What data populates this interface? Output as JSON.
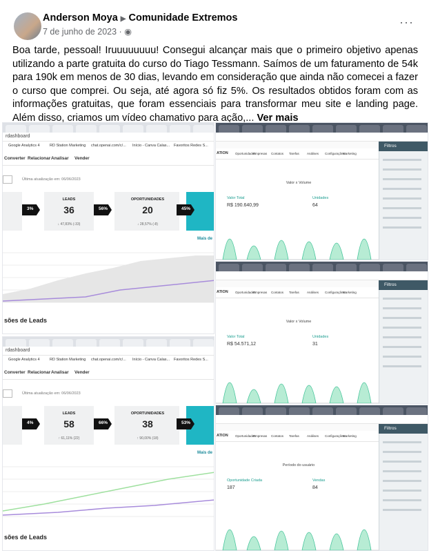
{
  "post": {
    "author": "Anderson Moya",
    "group": "Comunidade Extremos",
    "date": "7 de junho de 2023",
    "text": "Boa tarde, pessoal! Iruuuuuuuu! Consegui alcançar mais que o primeiro objetivo apenas utilizando a parte gratuita do curso do Tiago Tessmann. Saímos de um faturamento de 54k para 190k em menos de 30 dias, levando em consideração que ainda não comecei a fazer o curso que comprei. Ou seja, até agora só fiz 5%. Os resultados obtidos foram com as informações gratuitas, que foram essenciais para transformar meu site e landing page. Além disso, criamos um vídeo chamativo para ação,...",
    "more": "Ver mais"
  },
  "shots": [
    {
      "kind": "dash",
      "url": "rdashboard",
      "bookmarks": [
        "Google Analytics 4",
        "RD Station Marketing",
        "chat.openai.com/c/...",
        "Início - Canva Calas...",
        "Favoritos Redes S..."
      ],
      "menu": [
        "Converter",
        "Relacionar",
        "Analisar",
        "Vender"
      ],
      "updated": "Última atualização em: 06/06/2023",
      "funnel": [
        "3%",
        "56%",
        "45%"
      ],
      "kpis": [
        {
          "label": "LEADS",
          "value": "36",
          "change": "↓ 47,83% (-33)"
        },
        {
          "label": "OPORTUNIDADES",
          "value": "20",
          "change": "↓ 28,57% (-8)"
        }
      ],
      "link": "Mais de",
      "section": "sões de Leads"
    },
    {
      "kind": "dash",
      "url": "rdashboard",
      "bookmarks": [
        "Google Analytics 4",
        "RD Station Marketing",
        "chat.openai.com/c/...",
        "Início - Canva Calas...",
        "Favoritos Redes S..."
      ],
      "menu": [
        "Converter",
        "Relacionar",
        "Analisar",
        "Vender"
      ],
      "updated": "Última atualização em: 06/06/2023",
      "funnel": [
        "4%",
        "66%",
        "53%"
      ],
      "kpis": [
        {
          "label": "LEADS",
          "value": "58",
          "change": "↑ 61,11% (22)"
        },
        {
          "label": "OPORTUNIDADES",
          "value": "38",
          "change": "↑ 90,00% (18)"
        }
      ],
      "link": "Mais de",
      "section": "sões de Leads"
    },
    {
      "kind": "crm",
      "brand": "ATION",
      "menu": [
        "Oportunidades",
        "Empresas",
        "Contatos",
        "Tarefas",
        "Análises",
        "Configurações",
        "Marketing"
      ],
      "filters": "Filtros",
      "heading": "Valor x Volume",
      "metrics": [
        {
          "label": "Valor Total",
          "value": "R$ 190.640,99"
        },
        {
          "label": "Unidades",
          "value": "64"
        }
      ]
    },
    {
      "kind": "crm",
      "brand": "ATION",
      "menu": [
        "Oportunidades",
        "Empresas",
        "Contatos",
        "Tarefas",
        "Análises",
        "Configurações",
        "Marketing"
      ],
      "filters": "Filtros",
      "heading": "Valor x Volume",
      "metrics": [
        {
          "label": "Valor Total",
          "value": "R$ 54.571,12"
        },
        {
          "label": "Unidades",
          "value": "31"
        }
      ]
    },
    {
      "kind": "crm",
      "brand": "ATION",
      "menu": [
        "Oportunidades",
        "Empresas",
        "Contatos",
        "Tarefas",
        "Análises",
        "Configurações",
        "Marketing"
      ],
      "filters": "Filtros",
      "heading": "Período do usuário",
      "metrics": [
        {
          "label": "Oportunidade Criada",
          "value": "187"
        },
        {
          "label": "Vendas",
          "value": "84"
        }
      ]
    }
  ]
}
